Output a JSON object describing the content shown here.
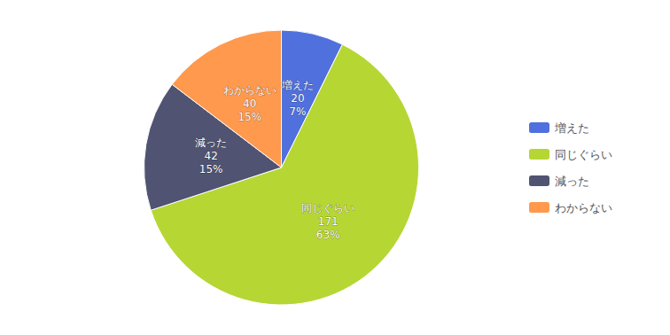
{
  "chart_data": {
    "type": "pie",
    "categories": [
      "増えた",
      "同じぐらい",
      "減った",
      "わからない"
    ],
    "values": [
      20,
      171,
      42,
      40
    ],
    "percentages": [
      {
        "value": 7,
        "label": "7%"
      },
      {
        "value": 63,
        "label": "63%"
      },
      {
        "value": 15,
        "label": "15%"
      },
      {
        "value": 15,
        "label": "15%"
      }
    ],
    "data_labels": true,
    "legend": "right"
  }
}
